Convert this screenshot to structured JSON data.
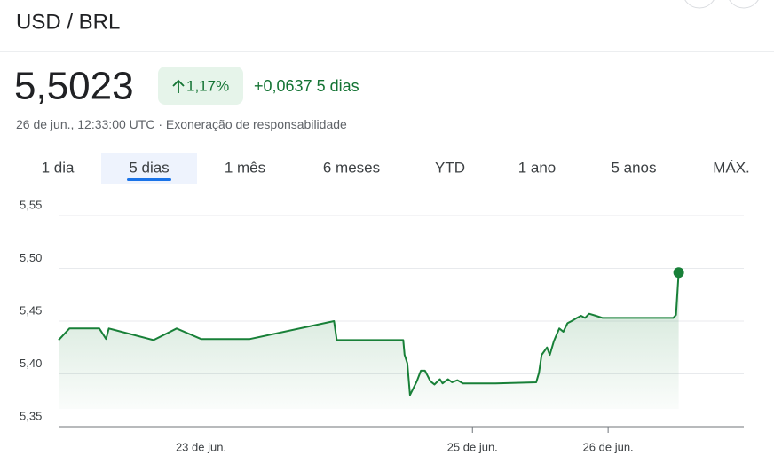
{
  "header": {
    "title": "USD / BRL",
    "price": "5,5023",
    "change_pct": "1,17%",
    "change_abs": "+0,0637",
    "period_label": "5 dias",
    "timestamp": "26 de jun., 12:33:00 UTC",
    "separator": "·",
    "disclaimer": "Exoneração de responsabilidade"
  },
  "tabs": {
    "items": [
      "1 dia",
      "5 dias",
      "1 mês",
      "6 meses",
      "YTD",
      "1 ano",
      "5 anos",
      "MÁX."
    ],
    "selected": 1
  },
  "chart_data": {
    "type": "line",
    "color": "#188038",
    "grid": true,
    "x": [
      21.95,
      22.03,
      22.25,
      22.3,
      22.32,
      22.65,
      22.82,
      23.0,
      23.36,
      23.98,
      24.0,
      24.25,
      24.27,
      24.49,
      24.5,
      24.52,
      24.54,
      24.59,
      24.62,
      24.65,
      24.69,
      24.72,
      24.76,
      24.78,
      24.82,
      24.85,
      24.89,
      24.93,
      25.17,
      25.47,
      25.49,
      25.51,
      25.55,
      25.57,
      25.6,
      25.62,
      25.64,
      25.67,
      25.7,
      25.73,
      25.77,
      25.8,
      25.83,
      25.86,
      25.91,
      25.96,
      26.28,
      26.48,
      26.5,
      26.52
    ],
    "values": [
      5.432,
      5.443,
      5.443,
      5.433,
      5.443,
      5.432,
      5.443,
      5.433,
      5.433,
      5.45,
      5.432,
      5.432,
      5.432,
      5.432,
      5.418,
      5.41,
      5.38,
      5.393,
      5.403,
      5.403,
      5.393,
      5.39,
      5.395,
      5.391,
      5.395,
      5.392,
      5.394,
      5.391,
      5.391,
      5.392,
      5.401,
      5.418,
      5.425,
      5.418,
      5.431,
      5.437,
      5.443,
      5.44,
      5.448,
      5.45,
      5.453,
      5.455,
      5.453,
      5.457,
      5.455,
      5.453,
      5.453,
      5.453,
      5.456,
      5.496
    ],
    "xlim": [
      21.95,
      27
    ],
    "xticks": [
      {
        "value": 23,
        "label": "23 de jun."
      },
      {
        "value": 25,
        "label": "25 de jun."
      },
      {
        "value": 26,
        "label": "26 de jun."
      }
    ],
    "ylim": [
      5.35,
      5.55
    ],
    "yticks": [
      {
        "value": 5.35,
        "label": "5,35"
      },
      {
        "value": 5.4,
        "label": "5,40"
      },
      {
        "value": 5.45,
        "label": "5,45"
      },
      {
        "value": 5.5,
        "label": "5,50"
      },
      {
        "value": 5.55,
        "label": "5,55"
      }
    ]
  }
}
